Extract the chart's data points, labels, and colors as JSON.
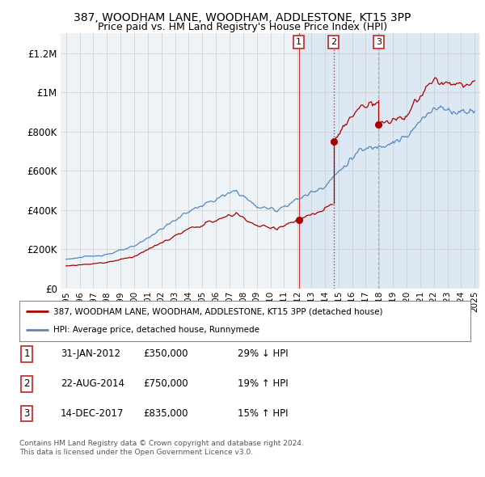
{
  "title1": "387, WOODHAM LANE, WOODHAM, ADDLESTONE, KT15 3PP",
  "title2": "Price paid vs. HM Land Registry's House Price Index (HPI)",
  "ylabel_ticks": [
    "£0",
    "£200K",
    "£400K",
    "£600K",
    "£800K",
    "£1M",
    "£1.2M"
  ],
  "ytick_vals": [
    0,
    200000,
    400000,
    600000,
    800000,
    1000000,
    1200000
  ],
  "ylim": [
    0,
    1300000
  ],
  "sale_prices": [
    350000,
    750000,
    835000
  ],
  "sale_labels": [
    "1",
    "2",
    "3"
  ],
  "sale_pct": [
    "29% ↓ HPI",
    "19% ↑ HPI",
    "15% ↑ HPI"
  ],
  "sale_date_strs": [
    "31-JAN-2012",
    "22-AUG-2014",
    "14-DEC-2017"
  ],
  "legend_line1": "387, WOODHAM LANE, WOODHAM, ADDLESTONE, KT15 3PP (detached house)",
  "legend_line2": "HPI: Average price, detached house, Runnymede",
  "footer1": "Contains HM Land Registry data © Crown copyright and database right 2024.",
  "footer2": "This data is licensed under the Open Government Licence v3.0.",
  "line_color_red": "#aa0000",
  "line_color_blue": "#5588bb",
  "bg_color": "#eef3f8",
  "shade_color": "#dce8f4",
  "grid_color": "#cccccc",
  "sale_years_decimal": [
    2012.08,
    2014.64,
    2017.95
  ],
  "vline1_style": "solid",
  "vline2_style": "dotted",
  "vline3_style": "dashed"
}
